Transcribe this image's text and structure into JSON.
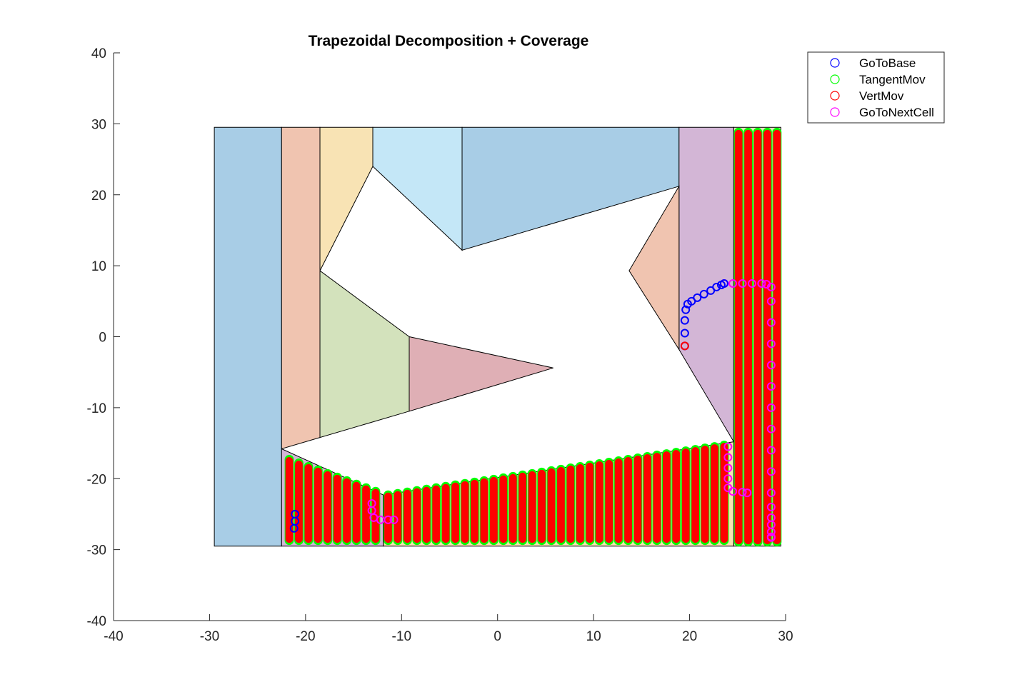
{
  "chart_data": {
    "type": "scatter",
    "title": "Trapezoidal Decomposition + Coverage",
    "xlabel": "",
    "ylabel": "",
    "xlim": [
      -40,
      30
    ],
    "ylim": [
      -40,
      40
    ],
    "xticks": [
      -40,
      -30,
      -20,
      -10,
      0,
      10,
      20,
      30
    ],
    "yticks": [
      -40,
      -30,
      -20,
      -10,
      0,
      10,
      20,
      30,
      40
    ],
    "xtick_labels": [
      "-40",
      "-30",
      "-20",
      "-10",
      "0",
      "10",
      "20",
      "30"
    ],
    "ytick_labels": [
      "-40",
      "-30",
      "-20",
      "-10",
      "0",
      "10",
      "20",
      "30",
      "40"
    ],
    "grid": false,
    "legend_position": "outside-top-right",
    "cells": [
      {
        "color": "#a8cde6",
        "points": [
          [
            -29.5,
            29.5
          ],
          [
            -22.5,
            29.5
          ],
          [
            -22.5,
            -29.5
          ],
          [
            -29.5,
            -29.5
          ]
        ]
      },
      {
        "color": "#f0c4b0",
        "points": [
          [
            -22.5,
            29.5
          ],
          [
            -18.5,
            29.5
          ],
          [
            -18.5,
            -14.2
          ],
          [
            -22.5,
            -15.8
          ]
        ]
      },
      {
        "color": "#f8e3b4",
        "points": [
          [
            -18.5,
            29.5
          ],
          [
            -13.0,
            29.5
          ],
          [
            -13.0,
            24.0
          ],
          [
            -18.5,
            9.3
          ]
        ]
      },
      {
        "color": "#c4e7f7",
        "points": [
          [
            -13.0,
            29.5
          ],
          [
            -3.7,
            29.5
          ],
          [
            -3.7,
            12.2
          ],
          [
            -13.0,
            24.0
          ]
        ]
      },
      {
        "color": "#a8cde6",
        "points": [
          [
            -3.7,
            29.5
          ],
          [
            18.9,
            29.5
          ],
          [
            18.9,
            21.2
          ],
          [
            -3.7,
            12.2
          ]
        ]
      },
      {
        "color": "#d3b6d6",
        "points": [
          [
            18.9,
            29.5
          ],
          [
            24.6,
            29.5
          ],
          [
            24.6,
            -14.8
          ],
          [
            18.9,
            -1.8
          ]
        ]
      },
      {
        "color": "#f0c4b0",
        "points": [
          [
            18.9,
            21.2
          ],
          [
            18.9,
            -1.8
          ],
          [
            13.7,
            9.3
          ]
        ]
      },
      {
        "color": "#e5e3c0",
        "points": [
          [
            24.6,
            29.5
          ],
          [
            29.5,
            29.5
          ],
          [
            29.5,
            -29.5
          ],
          [
            24.6,
            -29.5
          ]
        ]
      },
      {
        "color": "#d3e2bc",
        "points": [
          [
            -18.5,
            9.3
          ],
          [
            -9.2,
            0.0
          ],
          [
            -9.2,
            -10.5
          ],
          [
            -18.5,
            -14.2
          ]
        ]
      },
      {
        "color": "#dfafb5",
        "points": [
          [
            -9.2,
            0.0
          ],
          [
            5.8,
            -4.4
          ],
          [
            -9.2,
            -10.5
          ]
        ]
      },
      {
        "color": "#d3b6d6",
        "points": [
          [
            -22.5,
            -15.8
          ],
          [
            -11.9,
            -22.3
          ],
          [
            -11.9,
            -29.5
          ],
          [
            -22.5,
            -29.5
          ]
        ]
      },
      {
        "color": "#f8e3b4",
        "points": [
          [
            -11.9,
            -22.3
          ],
          [
            24.6,
            -14.8
          ],
          [
            24.6,
            -29.5
          ],
          [
            -11.9,
            -29.5
          ]
        ]
      }
    ],
    "coverage": {
      "sweep_spacing": 1.0,
      "vertmov_color": "#ff0000",
      "tangentmov_color": "#00ff00",
      "regions": [
        {
          "x_start": -21.7,
          "x_end": -12.6,
          "top_left": -17.5,
          "top_right": -22.0,
          "bottom": -28.5
        },
        {
          "x_start": -11.4,
          "x_end": 23.8,
          "top_left": -22.5,
          "top_right": -15.5,
          "bottom": -28.5
        },
        {
          "x_start": 25.1,
          "x_end": 28.6,
          "top_left": 28.6,
          "top_right": 28.6,
          "bottom": -28.7
        }
      ]
    },
    "series": [
      {
        "name": "GoToBase",
        "color": "#0000ff",
        "x": [
          19.5,
          19.5,
          19.5,
          19.6,
          19.8,
          20.2,
          20.8,
          21.5,
          22.2,
          22.8,
          23.3,
          23.6,
          -21.2,
          -21.1,
          -21.1
        ],
        "y": [
          -1.3,
          0.5,
          2.3,
          3.8,
          4.6,
          5.0,
          5.5,
          6.0,
          6.5,
          7.0,
          7.3,
          7.5,
          -27.0,
          -26.0,
          -25.0
        ]
      },
      {
        "name": "TangentMov",
        "color": "#00ff00",
        "x": [],
        "y": []
      },
      {
        "name": "VertMov",
        "color": "#ff0000",
        "x": [
          19.5
        ],
        "y": [
          -1.3
        ]
      },
      {
        "name": "GoToNextCell",
        "color": "#ff00ff",
        "x": [
          -13.1,
          -13.1,
          -12.9,
          -12.2,
          -11.4,
          -10.8,
          23.6,
          24.5,
          25.5,
          26.5,
          27.5,
          28.0,
          28.5,
          28.5,
          28.5,
          28.5,
          28.5,
          28.5,
          28.5,
          28.5,
          28.5,
          28.5,
          28.5,
          28.5,
          28.5,
          28.5,
          28.5,
          28.5,
          28.5,
          24.0,
          24.0,
          24.0,
          24.0,
          24.0,
          24.5,
          25.5,
          26.0
        ],
        "y": [
          -23.5,
          -24.5,
          -25.5,
          -25.8,
          -25.8,
          -25.8,
          7.5,
          7.5,
          7.5,
          7.5,
          7.5,
          7.4,
          7.0,
          5.0,
          2.0,
          -1.0,
          -4.0,
          -7.0,
          -10.0,
          -13.0,
          -16.0,
          -19.0,
          -22.0,
          -24.0,
          -25.5,
          -26.5,
          -27.5,
          -28.2,
          -28.3,
          -15.5,
          -17.0,
          -18.5,
          -20.0,
          -21.3,
          -21.8,
          -21.9,
          -22.0
        ]
      }
    ]
  }
}
